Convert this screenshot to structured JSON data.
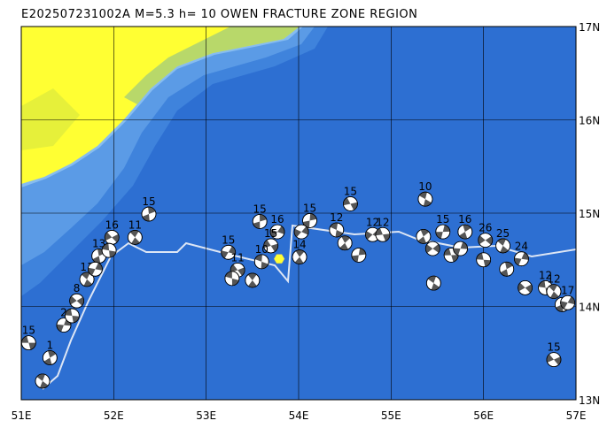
{
  "title": "E202507231002A M=5.3 h= 10 OWEN FRACTURE ZONE REGION",
  "map": {
    "xlim": [
      51,
      57
    ],
    "ylim": [
      13,
      17
    ],
    "xticks": [
      {
        "value": 51,
        "label": "51E"
      },
      {
        "value": 52,
        "label": "52E"
      },
      {
        "value": 53,
        "label": "53E"
      },
      {
        "value": 54,
        "label": "54E"
      },
      {
        "value": 55,
        "label": "55E"
      },
      {
        "value": 56,
        "label": "56E"
      },
      {
        "value": 57,
        "label": "57E"
      }
    ],
    "yticks": [
      {
        "value": 13,
        "label": "13N"
      },
      {
        "value": 14,
        "label": "14N"
      },
      {
        "value": 15,
        "label": "15N"
      },
      {
        "value": 16,
        "label": "16N"
      },
      {
        "value": 17,
        "label": "17N"
      }
    ],
    "epicenter": {
      "lon": 53.79,
      "lat": 14.51,
      "color": "#ffff33"
    },
    "events": [
      {
        "lon": 51.08,
        "lat": 13.61,
        "depth": 15
      },
      {
        "lon": 51.23,
        "lat": 13.2,
        "depth": null
      },
      {
        "lon": 51.31,
        "lat": 13.45,
        "depth": 1
      },
      {
        "lon": 51.46,
        "lat": 13.8,
        "depth": 2
      },
      {
        "lon": 51.6,
        "lat": 14.06,
        "depth": 8
      },
      {
        "lon": 51.55,
        "lat": 13.9,
        "depth": null
      },
      {
        "lon": 51.71,
        "lat": 14.29,
        "depth": 11
      },
      {
        "lon": 51.84,
        "lat": 14.54,
        "depth": 13
      },
      {
        "lon": 51.8,
        "lat": 14.4,
        "depth": null
      },
      {
        "lon": 51.98,
        "lat": 14.74,
        "depth": 16
      },
      {
        "lon": 51.95,
        "lat": 14.6,
        "depth": null
      },
      {
        "lon": 52.23,
        "lat": 14.74,
        "depth": 11
      },
      {
        "lon": 52.38,
        "lat": 14.99,
        "depth": 15
      },
      {
        "lon": 53.24,
        "lat": 14.58,
        "depth": 15
      },
      {
        "lon": 53.34,
        "lat": 14.39,
        "depth": 11
      },
      {
        "lon": 53.28,
        "lat": 14.3,
        "depth": null
      },
      {
        "lon": 53.5,
        "lat": 14.28,
        "depth": null
      },
      {
        "lon": 53.58,
        "lat": 14.91,
        "depth": 15
      },
      {
        "lon": 53.77,
        "lat": 14.8,
        "depth": 16
      },
      {
        "lon": 53.7,
        "lat": 14.65,
        "depth": 15
      },
      {
        "lon": 53.6,
        "lat": 14.48,
        "depth": 10
      },
      {
        "lon": 54.01,
        "lat": 14.53,
        "depth": 14
      },
      {
        "lon": 54.12,
        "lat": 14.92,
        "depth": 15
      },
      {
        "lon": 54.03,
        "lat": 14.8,
        "depth": null
      },
      {
        "lon": 54.56,
        "lat": 15.1,
        "depth": 15
      },
      {
        "lon": 54.41,
        "lat": 14.82,
        "depth": 12
      },
      {
        "lon": 54.5,
        "lat": 14.68,
        "depth": null
      },
      {
        "lon": 54.65,
        "lat": 14.55,
        "depth": null
      },
      {
        "lon": 54.8,
        "lat": 14.77,
        "depth": 12
      },
      {
        "lon": 54.91,
        "lat": 14.77,
        "depth": 12
      },
      {
        "lon": 55.37,
        "lat": 15.15,
        "depth": 10
      },
      {
        "lon": 55.35,
        "lat": 14.75,
        "depth": null
      },
      {
        "lon": 55.56,
        "lat": 14.8,
        "depth": 15
      },
      {
        "lon": 55.45,
        "lat": 14.62,
        "depth": null
      },
      {
        "lon": 55.65,
        "lat": 14.55,
        "depth": null
      },
      {
        "lon": 55.46,
        "lat": 14.25,
        "depth": null
      },
      {
        "lon": 55.8,
        "lat": 14.8,
        "depth": 16
      },
      {
        "lon": 55.75,
        "lat": 14.62,
        "depth": null
      },
      {
        "lon": 56.02,
        "lat": 14.71,
        "depth": 26
      },
      {
        "lon": 56.0,
        "lat": 14.5,
        "depth": null
      },
      {
        "lon": 56.21,
        "lat": 14.65,
        "depth": 25
      },
      {
        "lon": 56.25,
        "lat": 14.4,
        "depth": null
      },
      {
        "lon": 56.41,
        "lat": 14.51,
        "depth": 24
      },
      {
        "lon": 56.45,
        "lat": 14.2,
        "depth": null
      },
      {
        "lon": 56.67,
        "lat": 14.2,
        "depth": 12
      },
      {
        "lon": 56.76,
        "lat": 14.16,
        "depth": 12
      },
      {
        "lon": 56.85,
        "lat": 14.02,
        "depth": null
      },
      {
        "lon": 56.91,
        "lat": 14.04,
        "depth": 17
      },
      {
        "lon": 56.76,
        "lat": 13.43,
        "depth": 15
      }
    ]
  }
}
